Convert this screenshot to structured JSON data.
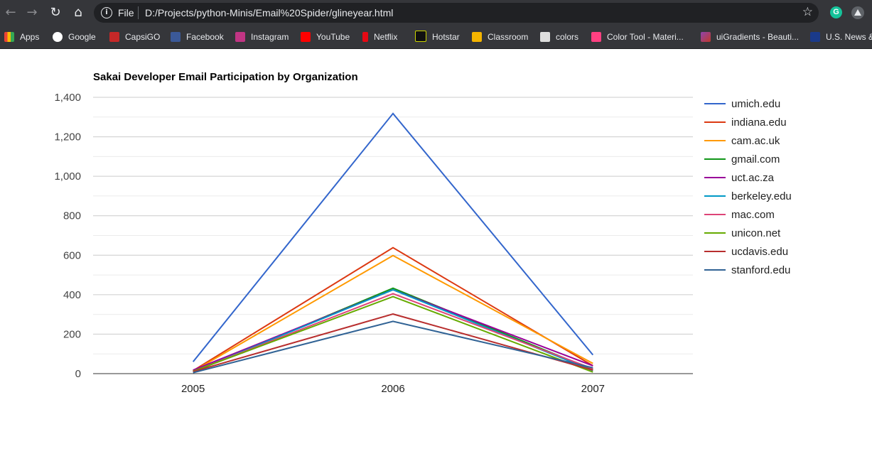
{
  "browser": {
    "file_label": "File",
    "url": "D:/Projects/python-Minis/Email%20Spider/glineyear.html",
    "icons": [
      "back-icon",
      "forward-icon",
      "reload-icon",
      "home-icon",
      "info-icon",
      "star-icon",
      "grammarly-icon",
      "drive-icon"
    ],
    "bookmarks": [
      {
        "label": "Apps",
        "color": "#ea4335"
      },
      {
        "label": "Google",
        "color": "#ffffff"
      },
      {
        "label": "CapsiGO",
        "color": "#c62828"
      },
      {
        "label": "Facebook",
        "color": "#3b5998"
      },
      {
        "label": "Instagram",
        "color": "#c13584"
      },
      {
        "label": "YouTube",
        "color": "#ff0000"
      },
      {
        "label": "Netflix",
        "color": "#e50914"
      },
      {
        "label": "Hotstar",
        "color": "#111111"
      },
      {
        "label": "Classroom",
        "color": "#f4b400"
      },
      {
        "label": "colors",
        "color": "#dddddd"
      },
      {
        "label": "Color Tool - Materi...",
        "color": "#ff4081"
      },
      {
        "label": "uiGradients - Beauti...",
        "color": "#8e44ad"
      },
      {
        "label": "U.S. News &",
        "color": "#1a3a8a"
      }
    ]
  },
  "chart_data": {
    "type": "line",
    "title": "Sakai Developer Email Participation by Organization",
    "xlabel": "",
    "ylabel": "",
    "categories": [
      "2005",
      "2006",
      "2007"
    ],
    "ylim": [
      0,
      1400
    ],
    "yticks": [
      0,
      200,
      400,
      600,
      800,
      1000,
      1200,
      1400
    ],
    "ytick_labels": [
      "0",
      "200",
      "400",
      "600",
      "800",
      "1,000",
      "1,200",
      "1,400"
    ],
    "grid": true,
    "legend_position": "right",
    "series": [
      {
        "name": "umich.edu",
        "color": "#3366cc",
        "values": [
          60,
          1318,
          95
        ]
      },
      {
        "name": "indiana.edu",
        "color": "#dc3912",
        "values": [
          15,
          638,
          40
        ]
      },
      {
        "name": "cam.ac.uk",
        "color": "#ff9900",
        "values": [
          12,
          598,
          52
        ]
      },
      {
        "name": "gmail.com",
        "color": "#109618",
        "values": [
          8,
          433,
          20
        ]
      },
      {
        "name": "uct.ac.za",
        "color": "#990099",
        "values": [
          18,
          425,
          40
        ]
      },
      {
        "name": "berkeley.edu",
        "color": "#0099c6",
        "values": [
          10,
          425,
          15
        ]
      },
      {
        "name": "mac.com",
        "color": "#dd4477",
        "values": [
          12,
          405,
          25
        ]
      },
      {
        "name": "unicon.net",
        "color": "#66aa00",
        "values": [
          12,
          390,
          8
        ]
      },
      {
        "name": "ucdavis.edu",
        "color": "#b82e2e",
        "values": [
          10,
          302,
          18
        ]
      },
      {
        "name": "stanford.edu",
        "color": "#316395",
        "values": [
          5,
          265,
          30
        ]
      }
    ]
  }
}
